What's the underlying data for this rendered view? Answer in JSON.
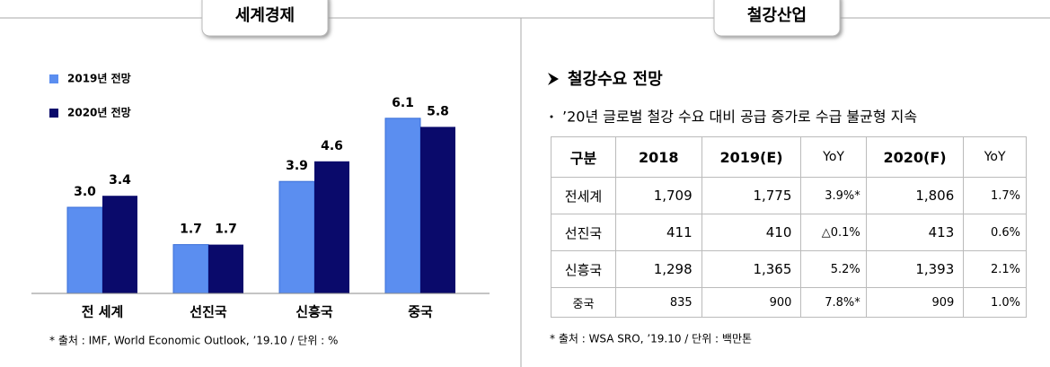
{
  "chart_data": {
    "type": "bar",
    "title": "세계경제",
    "categories": [
      "전 세계",
      "선진국",
      "신흥국",
      "중국"
    ],
    "series": [
      {
        "name": "2019년 전망",
        "color": "#5b8ef0",
        "values": [
          3.0,
          1.7,
          3.9,
          6.1
        ],
        "value_labels": [
          "3.0",
          "1.7",
          "3.9",
          "6.1"
        ]
      },
      {
        "name": "2020년 전망",
        "color": "#0a0a6b",
        "values": [
          3.4,
          1.7,
          4.6,
          5.8
        ],
        "value_labels": [
          "3.4",
          "1.7",
          "4.6",
          "5.8"
        ]
      }
    ],
    "ylim": [
      0,
      7
    ],
    "grid": false,
    "note": "* 출처 : IMF, World Economic Outlook, ’19.10 / 단위 : %"
  },
  "steel": {
    "title": "철강산업",
    "heading": "철강수요 전망",
    "bullet": "’20년 글로벌 철강 수요 대비 공급 증가로 수급 불균형 지속",
    "table": {
      "header": [
        "구분",
        "2018",
        "2019(E)",
        "YoY",
        "2020(F)",
        "YoY"
      ],
      "rows": [
        [
          "전세계",
          "1,709",
          "1,775",
          "3.9%*",
          "1,806",
          "1.7%"
        ],
        [
          "선진국",
          "411",
          "410",
          "△0.1%",
          "413",
          "0.6%"
        ],
        [
          "신흥국",
          "1,298",
          "1,365",
          "5.2%",
          "1,393",
          "2.1%"
        ],
        [
          "중국",
          "835",
          "900",
          "7.8%*",
          "909",
          "1.0%"
        ]
      ]
    },
    "note": "* 출처 : WSA SRO, ’19.10 / 단위 : 백만톤"
  }
}
